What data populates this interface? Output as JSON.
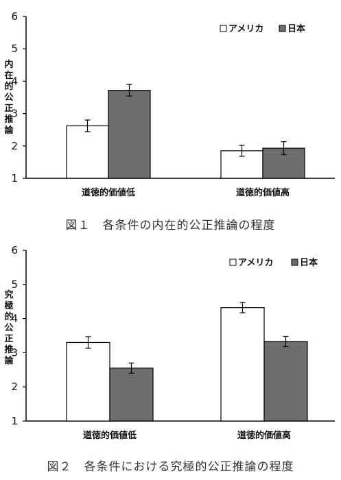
{
  "colors": {
    "america": "#ffffff",
    "japan": "#6e6e6e",
    "axis": "#000000"
  },
  "charts": [
    {
      "caption": "図１　各条件の内在的公正推論の程度",
      "chart_data": {
        "type": "bar",
        "ylabel": "内在的公正推論",
        "ylim": [
          1,
          6
        ],
        "yticks": [
          "1",
          "2",
          "3",
          "4",
          "5",
          "6"
        ],
        "categories": [
          "道徳的価値低",
          "道徳的価値高"
        ],
        "series": [
          {
            "name": "アメリカ",
            "values": [
              2.62,
              1.85
            ],
            "errors": [
              0.18,
              0.17
            ]
          },
          {
            "name": "日本",
            "values": [
              3.72,
              1.93
            ],
            "errors": [
              0.18,
              0.2
            ]
          }
        ],
        "legend": "top-right",
        "grid": false
      }
    },
    {
      "caption": "図２　各条件における究極的公正推論の程度",
      "chart_data": {
        "type": "bar",
        "ylabel": "究極的公正推論",
        "ylim": [
          1,
          6
        ],
        "yticks": [
          "1",
          "2",
          "3",
          "4",
          "5",
          "6"
        ],
        "categories": [
          "道徳的価値低",
          "道徳的価値高"
        ],
        "series": [
          {
            "name": "アメリカ",
            "values": [
              3.3,
              4.32
            ],
            "errors": [
              0.17,
              0.15
            ]
          },
          {
            "name": "日本",
            "values": [
              2.55,
              3.33
            ],
            "errors": [
              0.15,
              0.15
            ]
          }
        ],
        "legend": "top-right",
        "grid": false
      }
    }
  ]
}
